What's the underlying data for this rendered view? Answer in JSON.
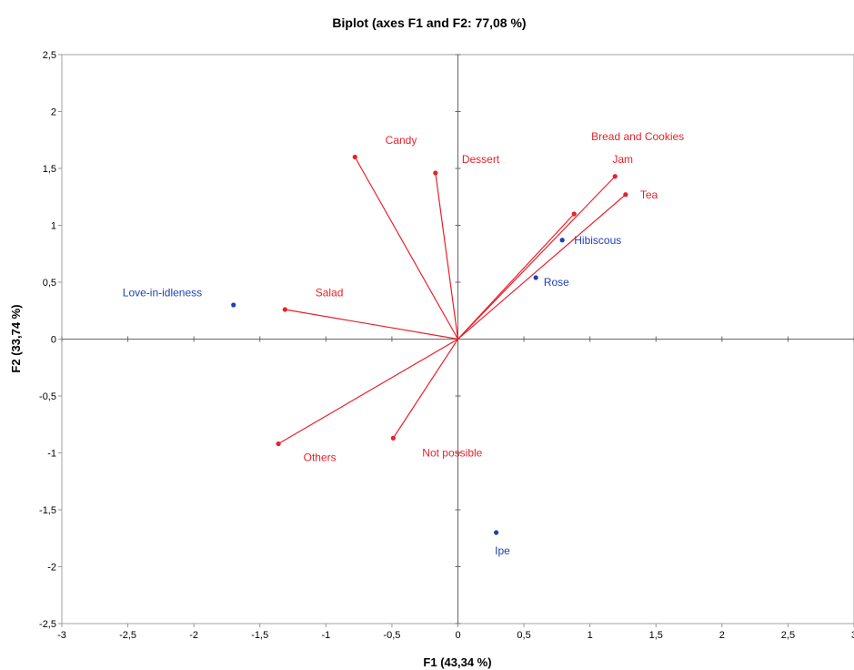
{
  "chart_data": {
    "type": "scatter",
    "title": "Biplot (axes F1 and F2: 77,08 %)",
    "xlabel": "F1 (43,34 %)",
    "ylabel": "F2 (33,74 %)",
    "xlim": [
      -3,
      3
    ],
    "ylim": [
      -2.5,
      2.5
    ],
    "xticks": [
      "-3",
      "-2,5",
      "-2",
      "-1,5",
      "-1",
      "-0,5",
      "0",
      "0,5",
      "1",
      "1,5",
      "2",
      "2,5",
      "3"
    ],
    "yticks": [
      "-2,5",
      "-2",
      "-1,5",
      "-1",
      "-0,5",
      "0",
      "0,5",
      "1",
      "1,5",
      "2",
      "2,5"
    ],
    "grid": false,
    "colors": {
      "variables": "#e8212b",
      "observations": "#1f3fb5"
    },
    "variables": [
      {
        "name": "Candy",
        "x": -0.78,
        "y": 1.6,
        "lx": -0.55,
        "ly": 1.75
      },
      {
        "name": "Dessert",
        "x": -0.17,
        "y": 1.46,
        "lx": 0.03,
        "ly": 1.58
      },
      {
        "name": "Bread and Cookies",
        "x": 0.88,
        "y": 1.1,
        "lx": 1.01,
        "ly": 1.78
      },
      {
        "name": "Jam",
        "x": 1.19,
        "y": 1.43,
        "lx": 1.17,
        "ly": 1.58
      },
      {
        "name": "Tea",
        "x": 1.27,
        "y": 1.27,
        "lx": 1.38,
        "ly": 1.27
      },
      {
        "name": "Salad",
        "x": -1.31,
        "y": 0.26,
        "lx": -1.08,
        "ly": 0.41
      },
      {
        "name": "Others",
        "x": -1.36,
        "y": -0.92,
        "lx": -1.17,
        "ly": -1.04
      },
      {
        "name": "Not possible",
        "x": -0.49,
        "y": -0.87,
        "lx": -0.27,
        "ly": -1.0
      }
    ],
    "observations": [
      {
        "name": "Love-in-idleness",
        "x": -1.7,
        "y": 0.3,
        "lx": -2.54,
        "ly": 0.41
      },
      {
        "name": "Hibiscous",
        "x": 0.79,
        "y": 0.87,
        "lx": 0.88,
        "ly": 0.87
      },
      {
        "name": "Rose",
        "x": 0.59,
        "y": 0.54,
        "lx": 0.65,
        "ly": 0.5
      },
      {
        "name": "Ipe",
        "x": 0.29,
        "y": -1.7,
        "lx": 0.28,
        "ly": -1.86
      }
    ]
  }
}
